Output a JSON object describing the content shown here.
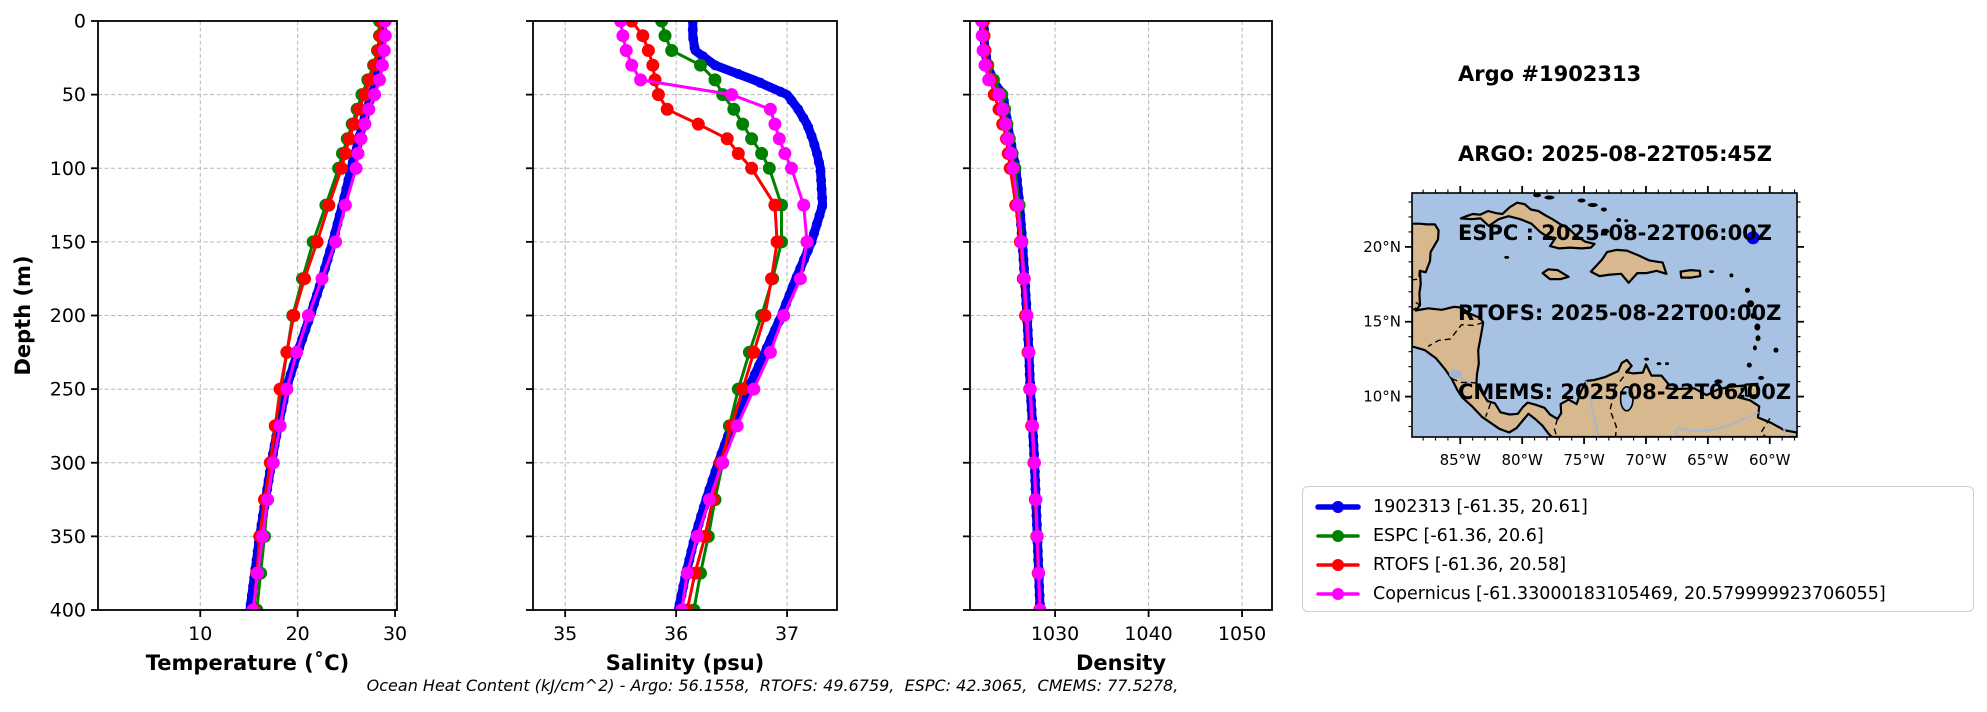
{
  "header": {
    "lines": [
      "Argo #1902313",
      "ARGO: 2025-08-22T05:45Z",
      "ESPC : 2025-08-22T06:00Z",
      "RTOFS: 2025-08-22T00:00Z",
      "CMEMS: 2025-08-22T06:00Z"
    ]
  },
  "footer": {
    "text": "Ocean Heat Content (kJ/cm^2) - Argo: 56.1558,  RTOFS: 49.6759,  ESPC: 42.3065,  CMEMS: 77.5278,"
  },
  "legend": {
    "items": [
      {
        "label": "1902313 [-61.35, 20.61]",
        "color": "#0000ee",
        "line_width": 5.5
      },
      {
        "label": "ESPC [-61.36, 20.6]",
        "color": "#008000",
        "line_width": 3.5
      },
      {
        "label": "RTOFS [-61.36, 20.58]",
        "color": "#ff0000",
        "line_width": 3.5
      },
      {
        "label": "Copernicus [-61.33000183105469, 20.579999923706055]",
        "color": "#ff00ff",
        "line_width": 3.5
      }
    ]
  },
  "map": {
    "extent": {
      "lon_min": -88.9,
      "lon_max": -57.8,
      "lat_min": 7.3,
      "lat_max": 23.6
    },
    "lon_tick_values": [
      -85,
      -80,
      -75,
      -70,
      -65,
      -60
    ],
    "lon_tick_labels": [
      "85°W",
      "80°W",
      "75°W",
      "70°W",
      "65°W",
      "60°W"
    ],
    "lat_tick_values": [
      20,
      15,
      10
    ],
    "lat_tick_labels": [
      "20°N",
      "15°N",
      "10°N"
    ],
    "float_marker": {
      "lon": -61.35,
      "lat": 20.61,
      "color": "#0000ee"
    },
    "ocean_color": "#a8c2e4",
    "land_color": "#d8b88f"
  },
  "chart_data": [
    {
      "id": "temperature",
      "type": "line",
      "xlabel": "Temperature (˚C)",
      "ylabel": "Depth (m)",
      "xlim": [
        -0.5,
        30.2
      ],
      "xticks": [
        10,
        20,
        30
      ],
      "ylim": [
        0,
        400
      ],
      "yticks": [
        0,
        50,
        100,
        150,
        200,
        250,
        300,
        350,
        400
      ],
      "show_ytick_labels": true,
      "grid": true,
      "depths": [
        0,
        10,
        20,
        30,
        40,
        50,
        60,
        70,
        80,
        90,
        100,
        125,
        150,
        175,
        200,
        225,
        250,
        275,
        300,
        325,
        350,
        375,
        400
      ],
      "series": [
        {
          "name": "argo-1902313",
          "color": "#0000ee",
          "line_width": 9,
          "marker_size": 5,
          "marker_step": 6,
          "values": [
            28.7,
            28.7,
            28.6,
            28.4,
            28.1,
            27.6,
            27.1,
            26.7,
            26.3,
            25.9,
            25.5,
            24.6,
            23.6,
            22.5,
            21.3,
            20.0,
            18.8,
            18.0,
            17.3,
            16.7,
            16.1,
            15.6,
            15.1
          ]
        },
        {
          "name": "espc",
          "color": "#008000",
          "line_width": 3,
          "marker_size": 6.5,
          "values": [
            28.4,
            28.4,
            28.2,
            27.8,
            27.2,
            26.6,
            26.1,
            25.6,
            25.1,
            24.6,
            24.2,
            22.9,
            21.6,
            20.5,
            19.5,
            18.9,
            18.3,
            17.7,
            17.2,
            16.9,
            16.6,
            16.2,
            15.8
          ]
        },
        {
          "name": "rtofs",
          "color": "#ff0000",
          "line_width": 3,
          "marker_size": 6.5,
          "values": [
            28.6,
            28.5,
            28.3,
            27.9,
            27.4,
            26.9,
            26.3,
            25.8,
            25.3,
            24.9,
            24.5,
            23.2,
            22.0,
            20.7,
            19.6,
            18.9,
            18.2,
            17.7,
            17.2,
            16.6,
            16.1,
            15.8,
            15.5
          ]
        },
        {
          "name": "copernicus-cmems",
          "color": "#ff00ff",
          "line_width": 3,
          "marker_size": 6.5,
          "values": [
            29.0,
            29.0,
            28.9,
            28.7,
            28.4,
            27.9,
            27.3,
            26.9,
            26.5,
            26.2,
            26.0,
            24.9,
            23.9,
            22.5,
            21.1,
            19.9,
            18.9,
            18.2,
            17.5,
            16.9,
            16.4,
            15.9,
            15.4
          ]
        }
      ]
    },
    {
      "id": "salinity",
      "type": "line",
      "xlabel": "Salinity (psu)",
      "ylabel": "",
      "xlim": [
        34.71,
        37.45
      ],
      "xticks": [
        35,
        36,
        37
      ],
      "ylim": [
        0,
        400
      ],
      "yticks": [
        0,
        50,
        100,
        150,
        200,
        250,
        300,
        350,
        400
      ],
      "show_ytick_labels": false,
      "grid": true,
      "depths": [
        0,
        10,
        20,
        30,
        40,
        50,
        60,
        70,
        80,
        90,
        100,
        125,
        150,
        175,
        200,
        225,
        250,
        275,
        300,
        325,
        350,
        375,
        400
      ],
      "series": [
        {
          "name": "argo-1902313",
          "color": "#0000ee",
          "line_width": 9,
          "marker_size": 5,
          "marker_step": 6,
          "values": [
            36.15,
            36.15,
            36.17,
            36.35,
            36.7,
            37.0,
            37.1,
            37.18,
            37.23,
            37.27,
            37.3,
            37.32,
            37.22,
            37.08,
            36.95,
            36.8,
            36.65,
            36.5,
            36.38,
            36.27,
            36.17,
            36.09,
            36.02
          ]
        },
        {
          "name": "espc",
          "color": "#008000",
          "line_width": 3,
          "marker_size": 6.5,
          "values": [
            35.87,
            35.9,
            35.96,
            36.22,
            36.35,
            36.42,
            36.52,
            36.6,
            36.68,
            36.77,
            36.84,
            36.95,
            36.95,
            36.87,
            36.77,
            36.66,
            36.56,
            36.48,
            36.42,
            36.35,
            36.29,
            36.22,
            36.16
          ]
        },
        {
          "name": "rtofs",
          "color": "#ff0000",
          "line_width": 3,
          "marker_size": 6.5,
          "values": [
            35.6,
            35.7,
            35.75,
            35.79,
            35.81,
            35.84,
            35.92,
            36.2,
            36.46,
            36.56,
            36.68,
            36.89,
            36.91,
            36.86,
            36.8,
            36.7,
            36.6,
            36.5,
            36.4,
            36.33,
            36.26,
            36.17,
            36.1
          ]
        },
        {
          "name": "copernicus-cmems",
          "color": "#ff00ff",
          "line_width": 3,
          "marker_size": 6.5,
          "values": [
            35.5,
            35.52,
            35.55,
            35.6,
            35.68,
            36.5,
            36.85,
            36.89,
            36.93,
            36.98,
            37.04,
            37.15,
            37.18,
            37.12,
            36.97,
            36.85,
            36.7,
            36.55,
            36.42,
            36.3,
            36.19,
            36.1,
            36.05
          ]
        }
      ]
    },
    {
      "id": "density",
      "type": "line",
      "xlabel": "Density",
      "ylabel": "",
      "xlim": [
        1020.9,
        1053.2
      ],
      "xticks": [
        1030,
        1040,
        1050
      ],
      "ylim": [
        0,
        400
      ],
      "yticks": [
        0,
        50,
        100,
        150,
        200,
        250,
        300,
        350,
        400
      ],
      "show_ytick_labels": false,
      "grid": true,
      "depths": [
        0,
        10,
        20,
        30,
        40,
        50,
        60,
        70,
        80,
        90,
        100,
        125,
        150,
        175,
        200,
        225,
        250,
        275,
        300,
        325,
        350,
        375,
        400
      ],
      "series": [
        {
          "name": "argo-1902313",
          "color": "#0000ee",
          "line_width": 9,
          "marker_size": 5,
          "marker_step": 6,
          "values": [
            1022.4,
            1022.4,
            1022.5,
            1022.8,
            1023.3,
            1024.4,
            1024.7,
            1024.9,
            1025.2,
            1025.5,
            1025.8,
            1026.2,
            1026.5,
            1026.75,
            1027.0,
            1027.2,
            1027.35,
            1027.6,
            1027.8,
            1027.95,
            1028.1,
            1028.25,
            1028.4
          ]
        },
        {
          "name": "espc",
          "color": "#008000",
          "line_width": 3,
          "marker_size": 6.5,
          "values": [
            1022.3,
            1022.3,
            1022.4,
            1022.8,
            1023.4,
            1024.3,
            1024.6,
            1024.85,
            1025.1,
            1025.4,
            1025.7,
            1026.15,
            1026.45,
            1026.7,
            1026.95,
            1027.15,
            1027.3,
            1027.55,
            1027.75,
            1027.9,
            1028.05,
            1028.2,
            1028.35
          ]
        },
        {
          "name": "rtofs",
          "color": "#ff0000",
          "line_width": 3,
          "marker_size": 6.5,
          "values": [
            1022.35,
            1022.4,
            1022.5,
            1022.7,
            1023.1,
            1023.5,
            1024.0,
            1024.4,
            1024.8,
            1025.0,
            1025.2,
            1025.8,
            1026.3,
            1026.6,
            1026.85,
            1027.1,
            1027.3,
            1027.5,
            1027.75,
            1027.9,
            1028.05,
            1028.2,
            1028.35
          ]
        },
        {
          "name": "copernicus-cmems",
          "color": "#ff00ff",
          "line_width": 3,
          "marker_size": 6.5,
          "values": [
            1022.15,
            1022.2,
            1022.3,
            1022.5,
            1022.9,
            1024.0,
            1024.4,
            1024.7,
            1024.95,
            1025.25,
            1025.5,
            1026.0,
            1026.4,
            1026.7,
            1027.0,
            1027.2,
            1027.35,
            1027.6,
            1027.8,
            1027.95,
            1028.1,
            1028.25,
            1028.4
          ]
        }
      ]
    }
  ]
}
